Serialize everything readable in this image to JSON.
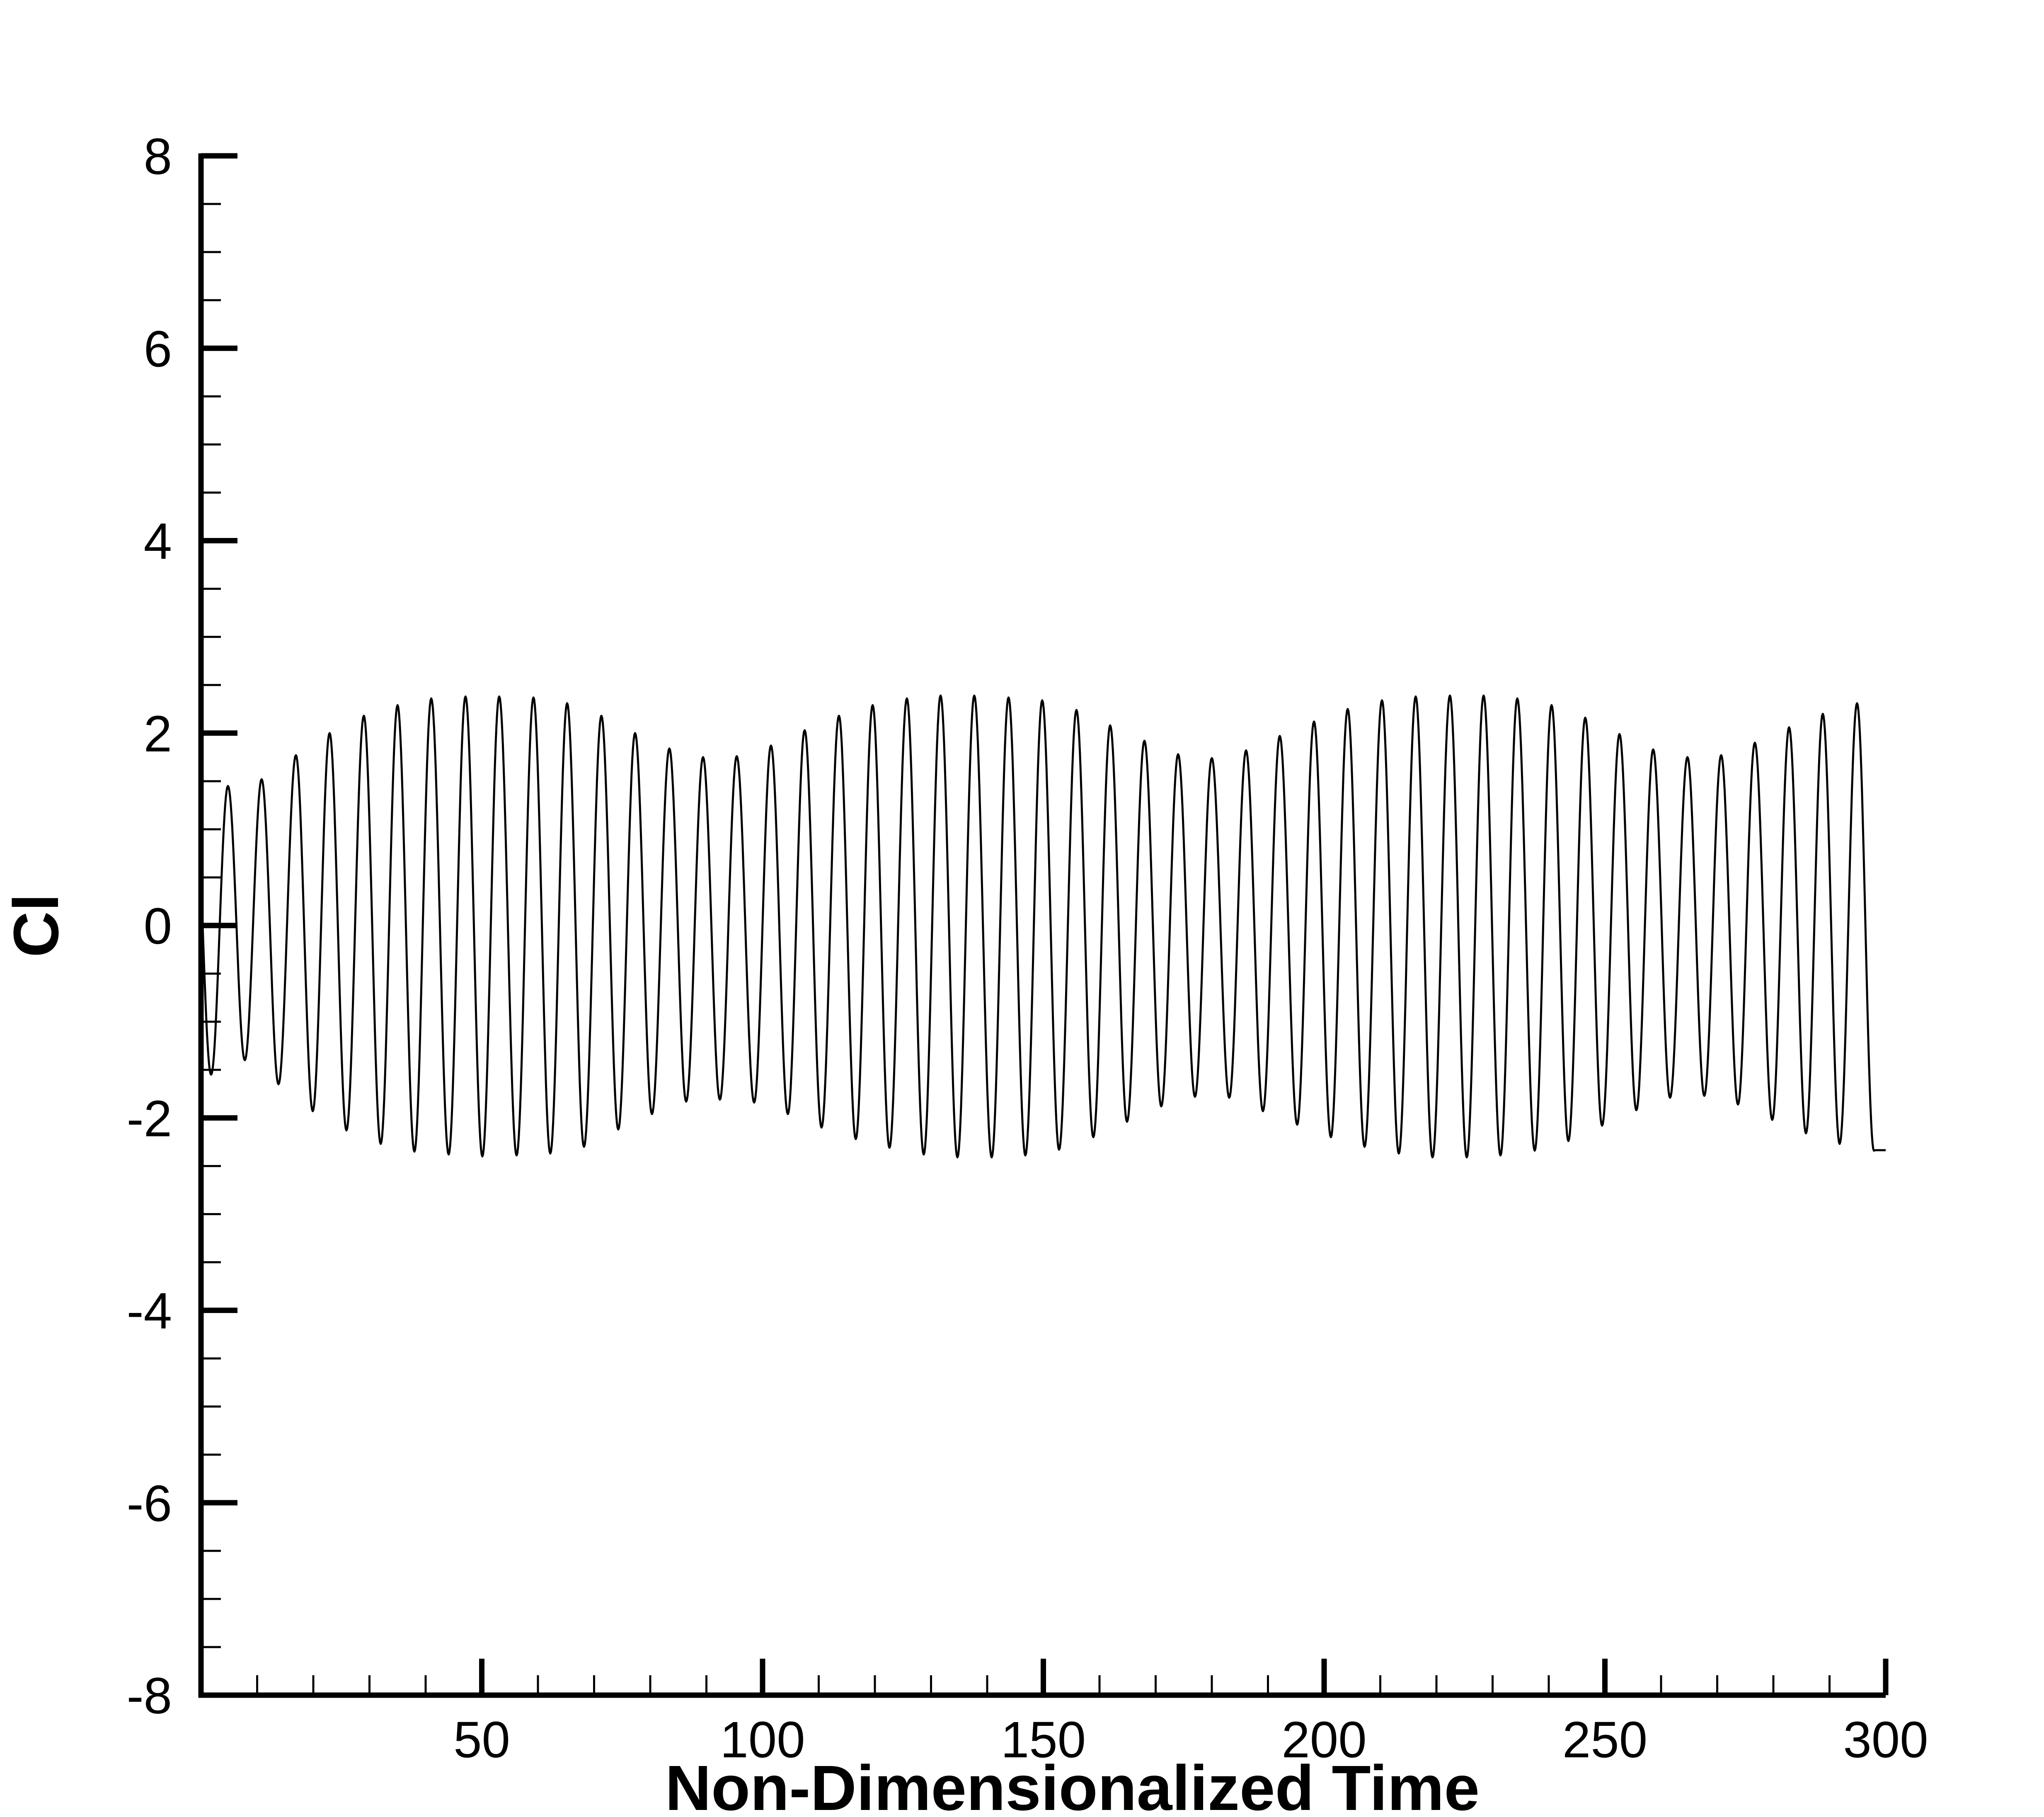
{
  "chart_data": {
    "type": "line",
    "title": "",
    "xlabel": "Non-Dimensionalized Time",
    "ylabel": "Cl",
    "xlim": [
      0,
      300
    ],
    "ylim": [
      -8,
      8
    ],
    "x_ticks": [
      50,
      100,
      150,
      200,
      250,
      300
    ],
    "x_tick_labels": [
      "50",
      "100",
      "150",
      "200",
      "250",
      "300"
    ],
    "y_ticks": [
      -8,
      -6,
      -4,
      -2,
      0,
      2,
      4,
      6,
      8
    ],
    "y_tick_labels": [
      "-8",
      "-6",
      "-4",
      "-2",
      "0",
      "2",
      "4",
      "6",
      "8"
    ],
    "grid": false,
    "legend": "none",
    "line_color": "#000000",
    "series": [
      {
        "period": 6.04,
        "x_start": 0,
        "x_end": 300,
        "peaks": [
          [
            4.8,
            1.45
          ],
          [
            10.8,
            1.52
          ],
          [
            16.9,
            1.77
          ],
          [
            22.9,
            2.0
          ],
          [
            29.0,
            2.18
          ],
          [
            35.0,
            2.29
          ],
          [
            41.0,
            2.36
          ],
          [
            47.1,
            2.38
          ],
          [
            53.1,
            2.38
          ],
          [
            59.2,
            2.37
          ],
          [
            65.2,
            2.31
          ],
          [
            71.3,
            2.18
          ],
          [
            77.3,
            2.0
          ],
          [
            83.4,
            1.84
          ],
          [
            89.4,
            1.75
          ],
          [
            95.4,
            1.76
          ],
          [
            101.5,
            1.87
          ],
          [
            107.5,
            2.03
          ],
          [
            113.6,
            2.18
          ],
          [
            119.6,
            2.29
          ],
          [
            125.7,
            2.36
          ],
          [
            131.7,
            2.39
          ],
          [
            137.7,
            2.39
          ],
          [
            143.8,
            2.37
          ],
          [
            149.8,
            2.34
          ],
          [
            155.9,
            2.24
          ],
          [
            161.9,
            2.08
          ],
          [
            168.0,
            1.92
          ],
          [
            174.0,
            1.78
          ],
          [
            180.0,
            1.74
          ],
          [
            186.1,
            1.82
          ],
          [
            192.1,
            1.97
          ],
          [
            198.2,
            2.12
          ],
          [
            204.2,
            2.25
          ],
          [
            210.3,
            2.34
          ],
          [
            216.3,
            2.38
          ],
          [
            222.4,
            2.39
          ],
          [
            228.4,
            2.39
          ],
          [
            234.4,
            2.36
          ],
          [
            240.5,
            2.29
          ],
          [
            246.5,
            2.16
          ],
          [
            252.6,
            1.99
          ],
          [
            258.6,
            1.83
          ],
          [
            264.7,
            1.75
          ],
          [
            270.7,
            1.77
          ],
          [
            276.7,
            1.9
          ],
          [
            282.8,
            2.06
          ],
          [
            288.8,
            2.2
          ],
          [
            294.9,
            2.31
          ]
        ],
        "troughs": [
          [
            1.8,
            -1.55
          ],
          [
            7.8,
            -1.4
          ],
          [
            13.8,
            -1.65
          ],
          [
            19.9,
            -1.93
          ],
          [
            25.9,
            -2.13
          ],
          [
            32.0,
            -2.27
          ],
          [
            38.0,
            -2.35
          ],
          [
            44.1,
            -2.38
          ],
          [
            50.1,
            -2.4
          ],
          [
            56.2,
            -2.39
          ],
          [
            62.2,
            -2.37
          ],
          [
            68.2,
            -2.3
          ],
          [
            74.3,
            -2.12
          ],
          [
            80.3,
            -1.96
          ],
          [
            86.4,
            -1.83
          ],
          [
            92.4,
            -1.81
          ],
          [
            98.5,
            -1.84
          ],
          [
            104.5,
            -1.96
          ],
          [
            110.5,
            -2.1
          ],
          [
            116.6,
            -2.22
          ],
          [
            122.6,
            -2.31
          ],
          [
            128.7,
            -2.38
          ],
          [
            134.7,
            -2.41
          ],
          [
            140.8,
            -2.41
          ],
          [
            146.8,
            -2.39
          ],
          [
            152.8,
            -2.33
          ],
          [
            158.9,
            -2.2
          ],
          [
            164.9,
            -2.04
          ],
          [
            171.0,
            -1.88
          ],
          [
            177.0,
            -1.78
          ],
          [
            183.1,
            -1.79
          ],
          [
            189.1,
            -1.93
          ],
          [
            195.2,
            -2.07
          ],
          [
            201.2,
            -2.2
          ],
          [
            207.2,
            -2.3
          ],
          [
            213.3,
            -2.37
          ],
          [
            219.3,
            -2.41
          ],
          [
            225.4,
            -2.41
          ],
          [
            231.4,
            -2.39
          ],
          [
            237.5,
            -2.34
          ],
          [
            243.5,
            -2.24
          ],
          [
            249.5,
            -2.08
          ],
          [
            255.6,
            -1.92
          ],
          [
            261.6,
            -1.79
          ],
          [
            267.7,
            -1.77
          ],
          [
            273.7,
            -1.86
          ],
          [
            279.8,
            -2.02
          ],
          [
            285.8,
            -2.16
          ],
          [
            291.8,
            -2.27
          ],
          [
            297.9,
            -2.34
          ]
        ]
      }
    ]
  }
}
